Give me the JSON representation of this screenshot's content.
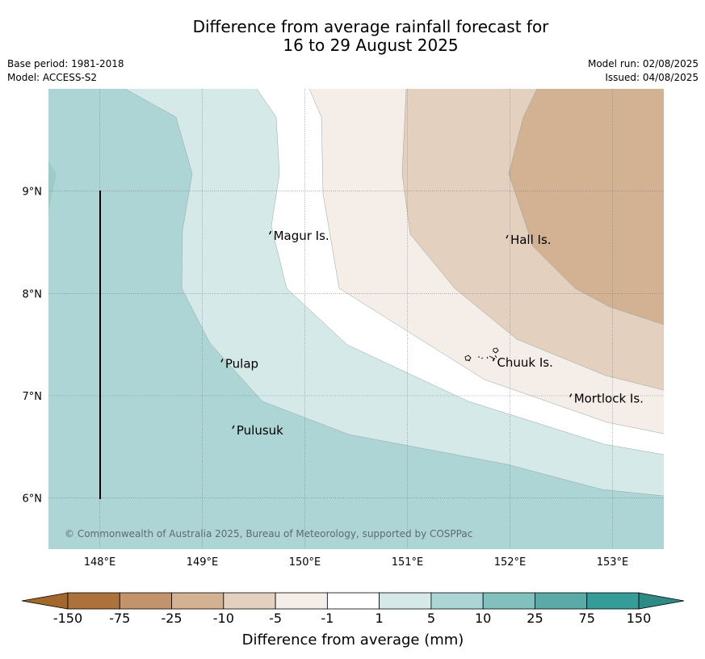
{
  "title_line1": "Difference from average rainfall forecast for",
  "title_line2": "16 to 29 August 2025",
  "base_period": "Base period: 1981-2018",
  "model": "Model: ACCESS-S2",
  "model_run": "Model run: 02/08/2025",
  "issued": "Issued: 04/08/2025",
  "copyright": "© Commonwealth of Australia 2025, Bureau of Meteorology, supported by COSPPac",
  "lon_labels": [
    "148°E",
    "149°E",
    "150°E",
    "151°E",
    "152°E",
    "153°E"
  ],
  "lat_labels": [
    "9°N",
    "8°N",
    "7°N",
    "6°N"
  ],
  "places": [
    {
      "name": "Magur Is.",
      "lon": 149.67,
      "lat": 8.57
    },
    {
      "name": "Hall Is.",
      "lon": 151.98,
      "lat": 8.53
    },
    {
      "name": "Pulap",
      "lon": 149.2,
      "lat": 7.32
    },
    {
      "name": "Chuuk Is.",
      "lon": 151.85,
      "lat": 7.33
    },
    {
      "name": "Mortlock Is.",
      "lon": 152.6,
      "lat": 6.98
    },
    {
      "name": "Pulusuk",
      "lon": 149.31,
      "lat": 6.67
    }
  ],
  "colorbar": {
    "labels": [
      "-150",
      "-75",
      "-25",
      "-10",
      "-5",
      "-1",
      "1",
      "5",
      "10",
      "25",
      "75",
      "150"
    ],
    "colors": [
      "#ad723b",
      "#c3946b",
      "#d2b292",
      "#e3d0bf",
      "#f4ede8",
      "#ffffff",
      "#d4e9e8",
      "#add5d5",
      "#81c0bd",
      "#5aaaa7",
      "#359c97"
    ],
    "under_color": "#a3672c",
    "over_color": "#2e8a84",
    "title": "Difference from average (mm)"
  },
  "map_data": {
    "lon_range": [
      147.5,
      153.5
    ],
    "lat_range": [
      5.5,
      10.0
    ],
    "category_colors": {
      "wet2": "#add5d5",
      "wet1": "#d4e9e8",
      "neutral": "#ffffff",
      "dry1": "#f4ede8",
      "dry2": "#e3d0bf",
      "dry3": "#d2b292",
      "wet3": "#9ccbc9"
    }
  }
}
